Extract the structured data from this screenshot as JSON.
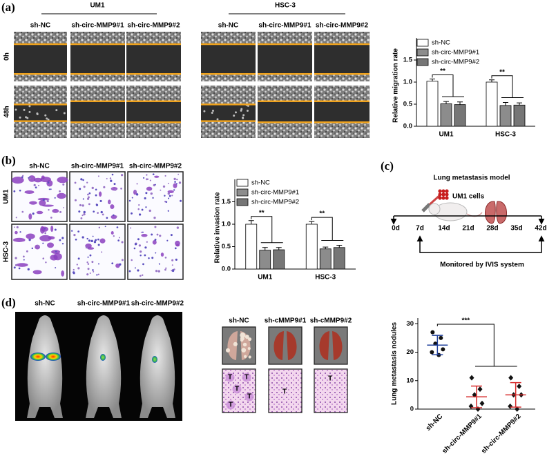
{
  "panel_a": {
    "label": "(a)",
    "groups": [
      {
        "name": "UM1",
        "columns": [
          "sh-NC",
          "sh-circ-MMP9#1",
          "sh-circ-MMP9#2"
        ]
      },
      {
        "name": "HSC-3",
        "columns": [
          "sh-NC",
          "sh-circ-MMP9#1",
          "sh-circ-MMP9#2"
        ]
      }
    ],
    "rows": [
      "0h",
      "48h"
    ]
  },
  "panel_b": {
    "label": "(b)",
    "columns": [
      "sh-NC",
      "sh-circ-MMP9#1",
      "sh-circ-MMP9#2"
    ],
    "rows": [
      "UM1",
      "HSC-3"
    ]
  },
  "panel_c": {
    "label": "(c)",
    "title": "Lung metastasis model",
    "cells": "UM1 cells",
    "timeline": [
      "0d",
      "7d",
      "14d",
      "21d",
      "28d",
      "35d",
      "42d"
    ],
    "monitor": "Monitored by IVIS system"
  },
  "panel_d": {
    "label": "(d)",
    "mice_columns": [
      "sh-NC",
      "sh-circ-MMP9#1",
      "sh-circ-MMP9#2"
    ],
    "lung_columns": [
      "sh-NC",
      "sh-cMMP9#1",
      "sh-cMMP9#2"
    ],
    "tumor_marks": [
      [
        "T",
        "T",
        "T",
        "T",
        "T"
      ],
      [
        "T"
      ],
      [
        "T"
      ]
    ]
  },
  "chart_data": [
    {
      "type": "bar",
      "y_label": "Relative migration rate",
      "categories": [
        "UM1",
        "HSC-3"
      ],
      "series": [
        {
          "name": "sh-NC",
          "color": "#ffffff",
          "values": [
            1.02,
            1.0
          ],
          "errors": [
            0.05,
            0.05
          ]
        },
        {
          "name": "sh-circ-MMP9#1",
          "color": "#8c8c8c",
          "values": [
            0.51,
            0.47
          ],
          "errors": [
            0.05,
            0.07
          ]
        },
        {
          "name": "sh-circ-MMP9#2",
          "color": "#767676",
          "values": [
            0.49,
            0.48
          ],
          "errors": [
            0.06,
            0.05
          ]
        }
      ],
      "ylim": [
        0,
        2.0
      ],
      "yticks": [
        {
          "value": 0,
          "label": "0.0"
        },
        {
          "value": 0.5,
          "label": "0.5"
        },
        {
          "value": 1,
          "label": "1.0"
        },
        {
          "value": 1.5,
          "label": "1.5"
        }
      ],
      "annotations": [
        "**",
        "**"
      ],
      "legend": "upper left"
    },
    {
      "type": "bar",
      "y_label": "Relative invasion rate",
      "categories": [
        "UM1",
        "HSC-3"
      ],
      "series": [
        {
          "name": "sh-NC",
          "color": "#ffffff",
          "values": [
            1.0,
            1.0
          ],
          "errors": [
            0.08,
            0.06
          ]
        },
        {
          "name": "sh-circ-MMP9#1",
          "color": "#8c8c8c",
          "values": [
            0.42,
            0.45
          ],
          "errors": [
            0.06,
            0.04
          ]
        },
        {
          "name": "sh-circ-MMP9#2",
          "color": "#767676",
          "values": [
            0.43,
            0.48
          ],
          "errors": [
            0.05,
            0.05
          ]
        }
      ],
      "ylim": [
        0,
        2.0
      ],
      "yticks": [
        {
          "value": 0,
          "label": "0.0"
        },
        {
          "value": 0.5,
          "label": "0.5"
        },
        {
          "value": 1,
          "label": "1.0"
        },
        {
          "value": 1.5,
          "label": "1.5"
        }
      ],
      "annotations": [
        "**",
        "**"
      ],
      "legend": "upper left"
    },
    {
      "type": "dotplot",
      "y_label": "Lung metastasis nodules",
      "categories": [
        "sh-NC",
        "sh-circ-MMP9#1",
        "sh-circ-MMP9#2"
      ],
      "points": [
        [
          27,
          25,
          23,
          21,
          20,
          19
        ],
        [
          11,
          7,
          5,
          2,
          1,
          0
        ],
        [
          11,
          8,
          5,
          5,
          1,
          0
        ]
      ],
      "means": [
        22.5,
        4.3,
        5.0
      ],
      "sds": [
        3.4,
        3.8,
        4.3
      ],
      "markers": [
        "circle",
        "diamond",
        "diamond"
      ],
      "marker_colors": [
        "#111111",
        "#111111",
        "#111111"
      ],
      "error_colors": [
        "#1c3d9a",
        "#d62b2b",
        "#d62b2b"
      ],
      "ylim": [
        0,
        32
      ],
      "yticks": [
        0,
        10,
        20,
        30
      ],
      "annotations": [
        "***"
      ]
    }
  ]
}
